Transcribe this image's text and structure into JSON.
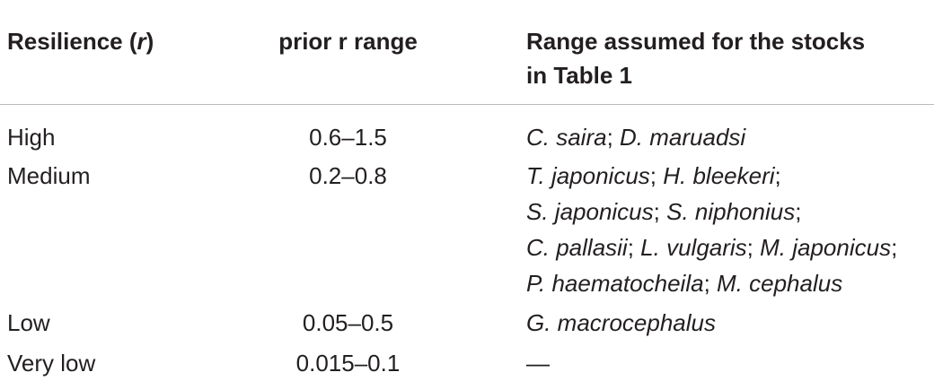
{
  "headers": {
    "resilience_text": "Resilience (",
    "resilience_r": "r",
    "resilience_close": ")",
    "prior_range": "prior r range",
    "assumed_line1": "Range assumed for the stocks",
    "assumed_line2": "in Table 1"
  },
  "rows": [
    {
      "resilience": "High",
      "prior": "0.6–1.5",
      "lines": [
        [
          {
            "sp": "C. saira"
          },
          {
            "sep": "; "
          },
          {
            "sp": "D. maruadsi"
          }
        ]
      ]
    },
    {
      "resilience": "Medium",
      "prior": "0.2–0.8",
      "lines": [
        [
          {
            "sp": "T. japonicus"
          },
          {
            "sep": "; "
          },
          {
            "sp": "H. bleekeri"
          },
          {
            "sep": ";"
          }
        ],
        [
          {
            "sp": "S. japonicus"
          },
          {
            "sep": "; "
          },
          {
            "sp": "S. niphonius"
          },
          {
            "sep": ";"
          }
        ],
        [
          {
            "sp": "C. pallasii"
          },
          {
            "sep": "; "
          },
          {
            "sp": "L. vulgaris"
          },
          {
            "sep": "; "
          },
          {
            "sp": "M. japonicus"
          },
          {
            "sep": ";"
          }
        ],
        [
          {
            "sp": "P. haematocheila"
          },
          {
            "sep": "; "
          },
          {
            "sp": "M. cephalus"
          }
        ]
      ]
    },
    {
      "resilience": "Low",
      "prior": "0.05–0.5",
      "lines": [
        [
          {
            "sp": "G. macrocephalus"
          }
        ]
      ]
    },
    {
      "resilience": "Very low",
      "prior": "0.015–0.1",
      "lines": [
        [
          {
            "sep": " —"
          }
        ]
      ]
    }
  ]
}
